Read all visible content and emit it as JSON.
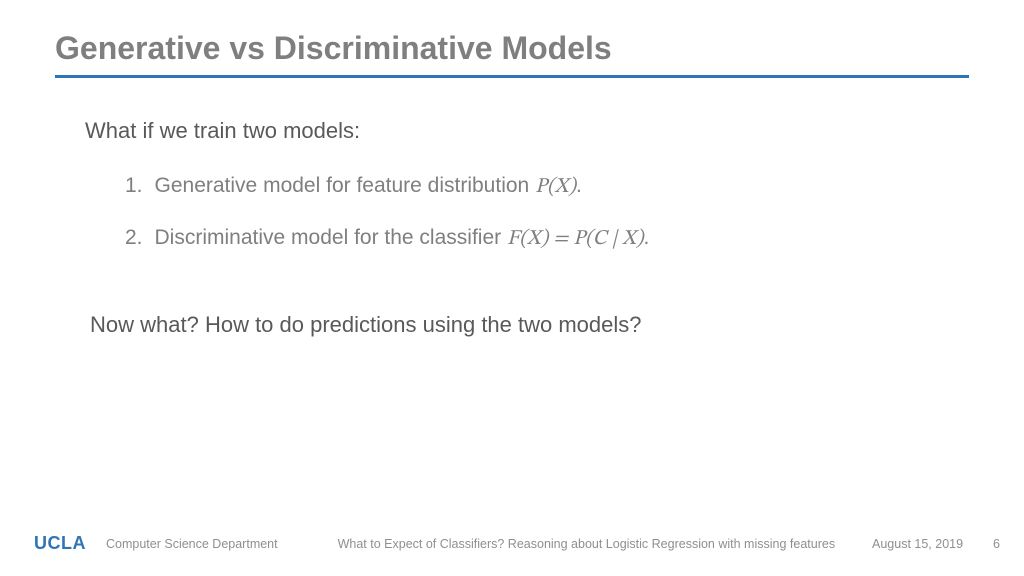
{
  "slide": {
    "title": "Generative vs Discriminative Models",
    "intro": "What if we train two models:",
    "items": [
      {
        "num": "1.",
        "text_prefix": "Generative model for feature distribution ",
        "math": "P(X)",
        "text_suffix": "."
      },
      {
        "num": "2.",
        "text_prefix": "Discriminative model for the classifier ",
        "math": "F(X) = P(C | X)",
        "text_suffix": "."
      }
    ],
    "outro": "Now what? How to do predictions using the two models?"
  },
  "footer": {
    "logo": "UCLA",
    "department": "Computer Science Department",
    "talk_title": "What to Expect of Classifiers? Reasoning about Logistic Regression with missing features",
    "date": "August 15, 2019",
    "page": "6"
  },
  "colors": {
    "title_text": "#7f7f7f",
    "rule": "#2e75b6",
    "body_dark": "#595959",
    "body_light": "#7f7f7f",
    "footer_text": "#8f8f8f",
    "logo": "#2e75b6",
    "background": "#ffffff"
  }
}
